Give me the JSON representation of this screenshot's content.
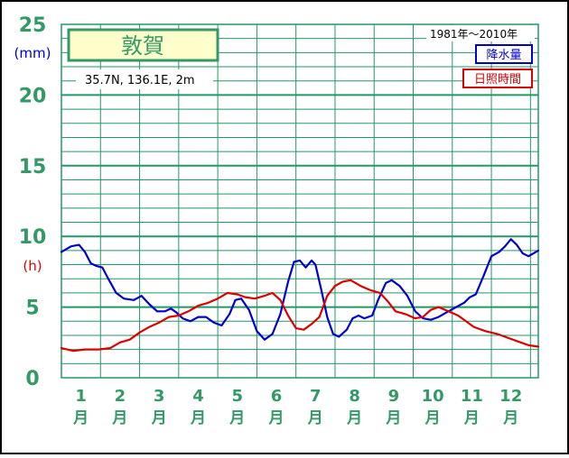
{
  "chart_data": {
    "type": "line",
    "title": "敦賀",
    "subtitle": "35.7N,  136.1E,  2m",
    "period": "1981年〜2010年",
    "ylabel_precip": "(mm)",
    "ylabel_sunshine": "(h)",
    "ylim": [
      0,
      25
    ],
    "y_ticks": [
      "0",
      "5",
      "10",
      "15",
      "20",
      "25"
    ],
    "x_ticks": [
      {
        "num": "1",
        "unit": "月"
      },
      {
        "num": "2",
        "unit": "月"
      },
      {
        "num": "3",
        "unit": "月"
      },
      {
        "num": "4",
        "unit": "月"
      },
      {
        "num": "5",
        "unit": "月"
      },
      {
        "num": "6",
        "unit": "月"
      },
      {
        "num": "7",
        "unit": "月"
      },
      {
        "num": "8",
        "unit": "月"
      },
      {
        "num": "9",
        "unit": "月"
      },
      {
        "num": "10",
        "unit": "月"
      },
      {
        "num": "11",
        "unit": "月"
      },
      {
        "num": "12",
        "unit": "月"
      }
    ],
    "x_range": [
      0.5,
      12.7
    ],
    "grid": true,
    "legend_position": "top-right",
    "series": [
      {
        "name": "降水量",
        "color": "#0000cc",
        "points": [
          [
            0.5,
            8.9
          ],
          [
            0.75,
            9.3
          ],
          [
            0.95,
            9.4
          ],
          [
            1.1,
            8.9
          ],
          [
            1.25,
            8.1
          ],
          [
            1.4,
            7.9
          ],
          [
            1.55,
            7.8
          ],
          [
            1.7,
            7.0
          ],
          [
            1.9,
            6.0
          ],
          [
            2.1,
            5.6
          ],
          [
            2.35,
            5.5
          ],
          [
            2.55,
            5.8
          ],
          [
            2.75,
            5.2
          ],
          [
            2.95,
            4.7
          ],
          [
            3.15,
            4.7
          ],
          [
            3.3,
            4.9
          ],
          [
            3.45,
            4.6
          ],
          [
            3.6,
            4.2
          ],
          [
            3.8,
            4.0
          ],
          [
            4.0,
            4.3
          ],
          [
            4.2,
            4.3
          ],
          [
            4.4,
            3.9
          ],
          [
            4.6,
            3.7
          ],
          [
            4.8,
            4.5
          ],
          [
            4.95,
            5.5
          ],
          [
            5.1,
            5.6
          ],
          [
            5.3,
            4.8
          ],
          [
            5.5,
            3.3
          ],
          [
            5.7,
            2.7
          ],
          [
            5.9,
            3.1
          ],
          [
            6.1,
            4.5
          ],
          [
            6.3,
            6.8
          ],
          [
            6.45,
            8.2
          ],
          [
            6.6,
            8.3
          ],
          [
            6.75,
            7.8
          ],
          [
            6.9,
            8.3
          ],
          [
            7.0,
            8.0
          ],
          [
            7.15,
            6.2
          ],
          [
            7.3,
            4.3
          ],
          [
            7.45,
            3.1
          ],
          [
            7.6,
            2.9
          ],
          [
            7.8,
            3.4
          ],
          [
            7.95,
            4.2
          ],
          [
            8.1,
            4.4
          ],
          [
            8.25,
            4.2
          ],
          [
            8.45,
            4.4
          ],
          [
            8.6,
            5.5
          ],
          [
            8.8,
            6.7
          ],
          [
            8.95,
            6.9
          ],
          [
            9.15,
            6.5
          ],
          [
            9.35,
            5.8
          ],
          [
            9.55,
            4.7
          ],
          [
            9.75,
            4.2
          ],
          [
            9.95,
            4.1
          ],
          [
            10.15,
            4.3
          ],
          [
            10.4,
            4.7
          ],
          [
            10.6,
            5.0
          ],
          [
            10.8,
            5.3
          ],
          [
            10.95,
            5.7
          ],
          [
            11.1,
            5.9
          ],
          [
            11.3,
            7.2
          ],
          [
            11.5,
            8.6
          ],
          [
            11.7,
            8.9
          ],
          [
            11.85,
            9.3
          ],
          [
            12.0,
            9.8
          ],
          [
            12.15,
            9.4
          ],
          [
            12.3,
            8.8
          ],
          [
            12.45,
            8.6
          ],
          [
            12.7,
            9.0
          ]
        ]
      },
      {
        "name": "日照時間",
        "color": "#dd0000",
        "points": [
          [
            0.5,
            2.1
          ],
          [
            0.8,
            1.9
          ],
          [
            1.1,
            2.0
          ],
          [
            1.45,
            2.0
          ],
          [
            1.75,
            2.1
          ],
          [
            2.0,
            2.5
          ],
          [
            2.25,
            2.7
          ],
          [
            2.5,
            3.2
          ],
          [
            2.75,
            3.6
          ],
          [
            3.0,
            3.9
          ],
          [
            3.25,
            4.3
          ],
          [
            3.5,
            4.4
          ],
          [
            3.75,
            4.7
          ],
          [
            4.0,
            5.1
          ],
          [
            4.25,
            5.3
          ],
          [
            4.5,
            5.6
          ],
          [
            4.75,
            6.0
          ],
          [
            5.0,
            5.9
          ],
          [
            5.2,
            5.7
          ],
          [
            5.45,
            5.6
          ],
          [
            5.7,
            5.8
          ],
          [
            5.9,
            6.0
          ],
          [
            6.1,
            5.5
          ],
          [
            6.3,
            4.4
          ],
          [
            6.5,
            3.5
          ],
          [
            6.7,
            3.4
          ],
          [
            6.9,
            3.8
          ],
          [
            7.1,
            4.3
          ],
          [
            7.3,
            5.8
          ],
          [
            7.5,
            6.5
          ],
          [
            7.7,
            6.8
          ],
          [
            7.9,
            6.9
          ],
          [
            8.15,
            6.5
          ],
          [
            8.4,
            6.2
          ],
          [
            8.65,
            6.0
          ],
          [
            8.85,
            5.4
          ],
          [
            9.05,
            4.7
          ],
          [
            9.3,
            4.5
          ],
          [
            9.55,
            4.2
          ],
          [
            9.75,
            4.3
          ],
          [
            9.95,
            4.8
          ],
          [
            10.15,
            5.0
          ],
          [
            10.4,
            4.7
          ],
          [
            10.65,
            4.4
          ],
          [
            10.85,
            4.0
          ],
          [
            11.05,
            3.6
          ],
          [
            11.35,
            3.3
          ],
          [
            11.65,
            3.1
          ],
          [
            11.95,
            2.8
          ],
          [
            12.25,
            2.5
          ],
          [
            12.45,
            2.3
          ],
          [
            12.7,
            2.2
          ]
        ]
      }
    ]
  },
  "colors": {
    "frame": "#000000",
    "grid": "#229966",
    "axis_text": "#339966",
    "title_box_bg": "#ffffcc",
    "title_box_border": "#339966"
  }
}
